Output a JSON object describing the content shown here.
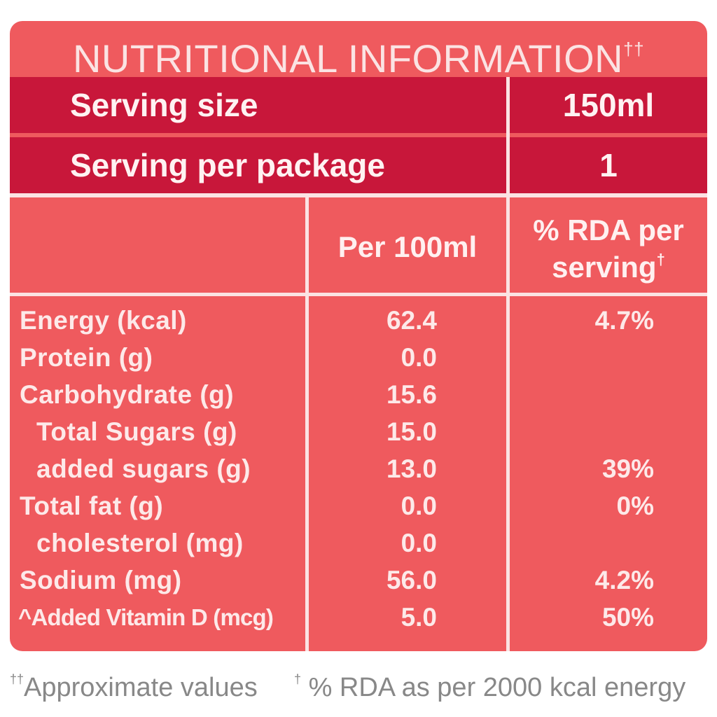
{
  "title": "NUTRITIONAL INFORMATION",
  "title_mark": "††",
  "serving_size": {
    "label": "Serving size",
    "value": "150ml"
  },
  "servings_per_package": {
    "label": "Serving per package",
    "value": "1"
  },
  "columns": {
    "per_100ml": "Per 100ml",
    "rda_line1": "% RDA per",
    "rda_line2": "serving",
    "rda_mark": "†"
  },
  "nutrients": [
    {
      "name": "Energy (kcal)",
      "per_100ml": "62.4",
      "rda": "4.7%"
    },
    {
      "name": "Protein (g)",
      "per_100ml": "0.0",
      "rda": ""
    },
    {
      "name": "Carbohydrate (g)",
      "per_100ml": "15.6",
      "rda": ""
    },
    {
      "name": "Total Sugars (g)",
      "per_100ml": "15.0",
      "rda": ""
    },
    {
      "name": "added sugars (g)",
      "per_100ml": "13.0",
      "rda": "39%"
    },
    {
      "name": "Total fat (g)",
      "per_100ml": "0.0",
      "rda": "0%"
    },
    {
      "name": "cholesterol (mg)",
      "per_100ml": "0.0",
      "rda": ""
    },
    {
      "name": "Sodium (mg)",
      "per_100ml": "56.0",
      "rda": "4.2%"
    },
    {
      "name": "^Added Vitamin D (mcg)",
      "per_100ml": "5.0",
      "rda": "50%"
    }
  ],
  "footnotes": {
    "approx_mark": "††",
    "approx_text": "Approximate values",
    "rda_mark": "†",
    "rda_text": " % RDA as per 2000 kcal energy"
  },
  "colors": {
    "panel": "#ef5a5e",
    "header": "#c8173a",
    "text": "#fde9e9",
    "footnote": "#888888"
  }
}
